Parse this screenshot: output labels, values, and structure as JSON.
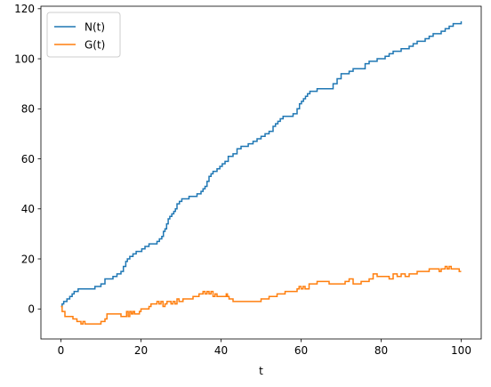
{
  "chart_data": {
    "type": "line",
    "title": "",
    "xlabel": "t",
    "ylabel": "",
    "xlim": [
      -5,
      105
    ],
    "ylim": [
      -12,
      121
    ],
    "xticks": [
      0,
      20,
      40,
      60,
      80,
      100
    ],
    "yticks": [
      0,
      20,
      40,
      60,
      80,
      100,
      120
    ],
    "grid": false,
    "legend_position": "top-left",
    "series": [
      {
        "name": "N(t)",
        "color": "#1f77b4",
        "x": [
          0,
          0.3,
          0.7,
          1.0,
          1.5,
          2.2,
          2.8,
          3.3,
          3.8,
          4.3,
          5.0,
          5.5,
          7.0,
          8.5,
          9.5,
          10.0,
          11.0,
          12.0,
          13.0,
          14.0,
          15.0,
          15.6,
          16.2,
          16.6,
          17.2,
          18.0,
          18.8,
          19.5,
          20.2,
          21.0,
          22.0,
          23.0,
          24.0,
          24.6,
          25.2,
          25.6,
          26.0,
          26.4,
          26.8,
          27.2,
          27.7,
          28.2,
          28.6,
          29.0,
          29.6,
          30.2,
          31.0,
          32.0,
          33.0,
          34.0,
          35.0,
          35.5,
          36.0,
          36.5,
          37.0,
          37.5,
          38.0,
          39.0,
          39.7,
          40.3,
          41.0,
          41.8,
          43.0,
          44.0,
          45.0,
          46.0,
          46.8,
          48.0,
          49.0,
          50.0,
          51.0,
          52.0,
          53.0,
          53.6,
          54.2,
          54.8,
          55.5,
          57.0,
          58.0,
          59.0,
          59.6,
          60.1,
          60.6,
          61.1,
          61.6,
          62.2,
          63.0,
          64.0,
          65.0,
          66.0,
          67.0,
          68.0,
          69.0,
          70.0,
          71.0,
          71.6,
          72.0,
          73.0,
          75.0,
          76.0,
          77.0,
          78.0,
          79.0,
          81.0,
          82.0,
          83.0,
          85.0,
          86.0,
          87.0,
          88.0,
          89.0,
          90.0,
          91.0,
          92.0,
          93.0,
          94.0,
          95.0,
          96.0,
          97.0,
          98.0,
          99.0,
          100.0
        ],
        "y": [
          1,
          2,
          3,
          3,
          4,
          5,
          6,
          7,
          7,
          8,
          8,
          8,
          8,
          9,
          9,
          10,
          12,
          12,
          13,
          14,
          15,
          17,
          19,
          20,
          21,
          22,
          23,
          23,
          24,
          25,
          26,
          26,
          27,
          28,
          29,
          31,
          32,
          34,
          36,
          37,
          38,
          39,
          40,
          42,
          43,
          44,
          44,
          45,
          45,
          46,
          47,
          48,
          49,
          51,
          53,
          54,
          55,
          56,
          57,
          58,
          59,
          61,
          62,
          64,
          65,
          65,
          66,
          67,
          68,
          69,
          70,
          71,
          73,
          74,
          75,
          76,
          77,
          77,
          78,
          80,
          82,
          83,
          84,
          85,
          86,
          87,
          87,
          88,
          88,
          88,
          88,
          90,
          92,
          94,
          94,
          94,
          95,
          96,
          96,
          98,
          99,
          99,
          100,
          101,
          102,
          103,
          104,
          104,
          105,
          106,
          107,
          107,
          108,
          109,
          110,
          110,
          111,
          112,
          113,
          114,
          114,
          115
        ]
      },
      {
        "name": "G(t)",
        "color": "#ff7f0e",
        "x": [
          0,
          0.3,
          1.0,
          2.0,
          3.0,
          3.5,
          4.0,
          4.5,
          5.0,
          5.5,
          6.0,
          7.0,
          8.0,
          9.0,
          10.0,
          10.5,
          11.0,
          11.5,
          12.0,
          13.0,
          14.0,
          15.0,
          16.0,
          16.4,
          16.8,
          17.2,
          17.6,
          18.0,
          18.4,
          18.8,
          19.2,
          19.6,
          20.0,
          21.0,
          22.0,
          22.5,
          23.0,
          23.5,
          24.0,
          24.5,
          25.0,
          25.5,
          26.0,
          26.5,
          27.0,
          27.5,
          28.0,
          28.5,
          29.0,
          29.5,
          30.0,
          30.5,
          31.0,
          32.0,
          33.0,
          34.0,
          34.5,
          35.0,
          35.5,
          36.0,
          36.5,
          37.0,
          37.5,
          38.0,
          38.5,
          39.0,
          40.0,
          41.0,
          41.3,
          41.6,
          42.0,
          43.0,
          44.0,
          45.0,
          46.0,
          47.0,
          48.0,
          49.0,
          50.0,
          51.0,
          52.0,
          53.0,
          54.0,
          55.0,
          56.0,
          57.0,
          58.0,
          59.0,
          59.5,
          60.0,
          60.5,
          61.0,
          62.0,
          63.0,
          64.0,
          65.0,
          66.0,
          67.0,
          68.0,
          69.0,
          70.0,
          71.0,
          71.5,
          72.0,
          73.0,
          75.0,
          76.0,
          77.0,
          78.0,
          79.0,
          80.0,
          81.0,
          82.0,
          83.0,
          84.0,
          85.0,
          86.0,
          87.0,
          88.0,
          89.0,
          90.0,
          91.0,
          92.0,
          93.0,
          94.0,
          94.5,
          95.0,
          95.5,
          96.0,
          96.5,
          97.0,
          97.5,
          98.0,
          98.5,
          99.0,
          99.5,
          100.0
        ],
        "y": [
          1,
          -1,
          -3,
          -3,
          -4,
          -4,
          -5,
          -5,
          -6,
          -5,
          -6,
          -6,
          -6,
          -6,
          -5,
          -5,
          -4,
          -2,
          -2,
          -2,
          -2,
          -3,
          -3,
          -1,
          -3,
          -1,
          -2,
          -1,
          -2,
          -2,
          -2,
          -1,
          0,
          0,
          1,
          2,
          2,
          2,
          3,
          2,
          3,
          1,
          2,
          3,
          3,
          2,
          3,
          2,
          4,
          3,
          3,
          4,
          4,
          4,
          5,
          5,
          6,
          6,
          7,
          6,
          7,
          6,
          7,
          5,
          6,
          5,
          5,
          5,
          6,
          5,
          4,
          3,
          3,
          3,
          3,
          3,
          3,
          3,
          4,
          4,
          5,
          5,
          6,
          6,
          7,
          7,
          7,
          8,
          9,
          8,
          9,
          8,
          10,
          10,
          11,
          11,
          11,
          10,
          10,
          10,
          10,
          11,
          11,
          12,
          10,
          11,
          11,
          12,
          14,
          13,
          13,
          13,
          12,
          14,
          13,
          14,
          13,
          14,
          14,
          15,
          15,
          15,
          16,
          16,
          16,
          15,
          16,
          16,
          17,
          16,
          17,
          16,
          16,
          16,
          16,
          15,
          15
        ]
      }
    ]
  }
}
